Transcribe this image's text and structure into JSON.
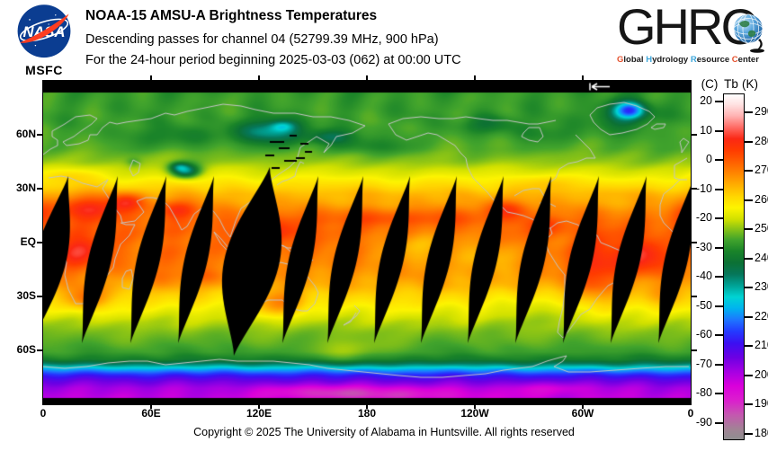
{
  "header": {
    "nasa": {
      "label": "MSFC"
    },
    "title": "NOAA-15 AMSU-A Brightness Temperatures",
    "subtitle1": "Descending passes for channel 04 (52799.39 MHz, 900 hPa)",
    "subtitle2": "For the 24-hour period beginning 2025-03-03 (062) at 00:00 UTC",
    "ghrc": {
      "wordmark_prefix": "GHR",
      "wordmark_c": "C",
      "tagline": [
        {
          "initial": "G",
          "rest": "lobal",
          "color": "#e4512d"
        },
        {
          "initial": "H",
          "rest": "ydrology",
          "color": "#3ea6da"
        },
        {
          "initial": "R",
          "rest": "esource",
          "color": "#3ea6da"
        },
        {
          "initial": "C",
          "rest": "enter",
          "color": "#e4512d"
        }
      ]
    }
  },
  "map": {
    "x_axis": {
      "ticks": [
        {
          "label": "0",
          "lon": 0
        },
        {
          "label": "60E",
          "lon": 60
        },
        {
          "label": "120E",
          "lon": 120
        },
        {
          "label": "180",
          "lon": 180
        },
        {
          "label": "120W",
          "lon": 240
        },
        {
          "label": "60W",
          "lon": 300
        },
        {
          "label": "0",
          "lon": 360
        }
      ]
    },
    "y_axis": {
      "ticks": [
        {
          "label": "60N",
          "lat": 60
        },
        {
          "label": "30N",
          "lat": 30
        },
        {
          "label": "EQ",
          "lat": 0
        },
        {
          "label": "30S",
          "lat": -30
        },
        {
          "label": "60S",
          "lat": -60
        }
      ]
    },
    "direction_arrow_symbol": "←"
  },
  "colorbar": {
    "header_c": "(C)",
    "header_tb": "Tb",
    "header_k": "(K)",
    "celsius_ticks": [
      20,
      10,
      0,
      -10,
      -20,
      -30,
      -40,
      -50,
      -60,
      -70,
      -80,
      -90
    ],
    "kelvin_ticks": [
      290,
      280,
      270,
      260,
      250,
      240,
      230,
      220,
      210,
      200,
      190,
      180
    ],
    "gradient_stops_k": [
      [
        296.5,
        "#ffffff"
      ],
      [
        293,
        "#ffe2e2"
      ],
      [
        289,
        "#ffb2b2"
      ],
      [
        285,
        "#ff6b64"
      ],
      [
        281,
        "#fb2814"
      ],
      [
        277,
        "#ff3c00"
      ],
      [
        273,
        "#ff5f00"
      ],
      [
        269,
        "#ff8600"
      ],
      [
        265,
        "#ffae00"
      ],
      [
        261,
        "#ffd600"
      ],
      [
        257,
        "#fdf400"
      ],
      [
        253,
        "#d0e000"
      ],
      [
        250,
        "#90c614"
      ],
      [
        246,
        "#42a42c"
      ],
      [
        242,
        "#1a8429"
      ],
      [
        238,
        "#0c7134"
      ],
      [
        234,
        "#067659"
      ],
      [
        230,
        "#00a295"
      ],
      [
        226,
        "#00d3d3"
      ],
      [
        222,
        "#00b3ef"
      ],
      [
        218,
        "#1e75ff"
      ],
      [
        214,
        "#243aff"
      ],
      [
        210,
        "#3b10f2"
      ],
      [
        205,
        "#6c00e3"
      ],
      [
        200,
        "#a600e3"
      ],
      [
        195,
        "#da00db"
      ],
      [
        190,
        "#db1fcd"
      ],
      [
        185,
        "#c458af"
      ],
      [
        180,
        "#a18395"
      ],
      [
        176.5,
        "#8f8f8f"
      ]
    ]
  },
  "footer": {
    "copyright": "Copyright © 2025 The University of Alabama in Huntsville.  All rights reserved"
  },
  "chart_data": {
    "type": "heatmap",
    "title": "NOAA-15 AMSU-A Brightness Temperatures",
    "subtitle": "Descending passes for channel 04 (52799.39 MHz, 900 hPa)",
    "period": "For the 24-hour period beginning 2025-03-03 (062) at 00:00 UTC",
    "satellite": "NOAA-15",
    "instrument": "AMSU-A",
    "channel": "04",
    "frequency_mhz": 52799.39,
    "pressure_level_hpa": 900,
    "date": "2025-03-03",
    "day_of_year": "062",
    "start_time_utc": "00:00",
    "pass_type": "Descending",
    "projection": "equirectangular world map, longitude 0 to 360E left to right, latitude 90N to 90S top to bottom",
    "x_axis": {
      "tick_labels": [
        "0",
        "60E",
        "120E",
        "180",
        "120W",
        "60W",
        "0"
      ],
      "tick_lons_deg_east": [
        0,
        60,
        120,
        180,
        240,
        300,
        360
      ]
    },
    "y_axis": {
      "tick_labels": [
        "60N",
        "30N",
        "EQ",
        "30S",
        "60S"
      ],
      "tick_lats_deg": [
        60,
        30,
        0,
        -30,
        -60
      ]
    },
    "colorbar": {
      "title": "Tb",
      "left_unit": "(C)",
      "right_unit": "(K)",
      "celsius_ticks": [
        20,
        10,
        0,
        -10,
        -20,
        -30,
        -40,
        -50,
        -60,
        -70,
        -80,
        -90
      ],
      "kelvin_ticks": [
        290,
        280,
        270,
        260,
        250,
        240,
        230,
        220,
        210,
        200,
        190,
        180
      ],
      "approx_kelvin_range": [
        177,
        296
      ]
    },
    "visible_features": [
      "Warm tropics (~265-290 K): yellow/orange band between ~35N and ~35S with red maxima over North Africa, Arabia, India, SE Asia, Australia, southern Africa, South America and the equatorial Atlantic",
      "Mid and high latitudes (~244-255 K) shown in green tones",
      "Cold spots: Greenland (~210-225 K, blue) and northeast Siberia (~220-235 K, cyan/blue)",
      "Antarctica: cyan-blue-purple gradient down to ~195-205 K",
      "About 14 black lens-shaped data gaps between successive descending swaths, tilted NE-SW, widest near the equator",
      "Black no-data strips along the top and bottom edges of the map",
      "White westward arrow in the top black strip showing pass direction"
    ]
  }
}
